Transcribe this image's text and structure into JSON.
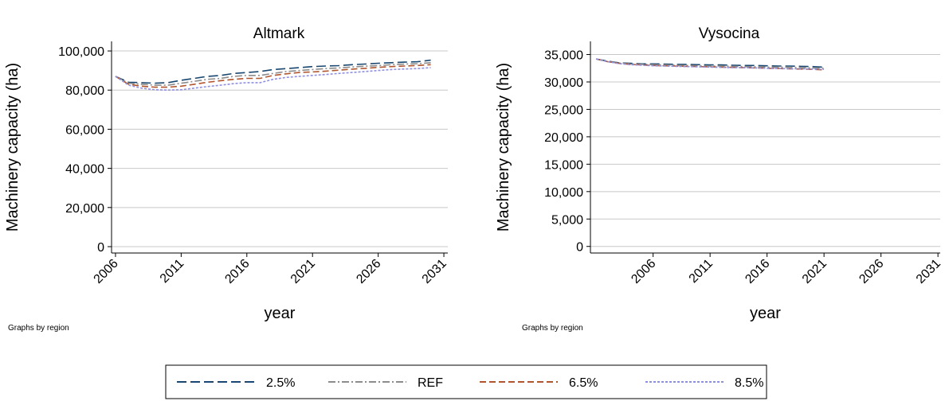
{
  "chart_data": [
    {
      "type": "line",
      "title": "Altmark",
      "x_label": "year",
      "y_label": "Machinery capacity (ha)",
      "note": "Graphs by region",
      "x": [
        2006,
        2007,
        2008,
        2009,
        2010,
        2011,
        2012,
        2013,
        2014,
        2015,
        2016,
        2017,
        2018,
        2019,
        2020,
        2021,
        2022,
        2023,
        2024,
        2025,
        2026,
        2027,
        2028,
        2029,
        2030
      ],
      "series": [
        {
          "values": [
            87000,
            84000,
            83800,
            83500,
            83800,
            85000,
            86000,
            87000,
            87500,
            88500,
            89000,
            89500,
            90500,
            91000,
            91500,
            92000,
            92300,
            92500,
            93000,
            93300,
            93700,
            94000,
            94300,
            94500,
            95300
          ]
        },
        {
          "values": [
            87000,
            83500,
            83000,
            82500,
            82500,
            83500,
            84500,
            85500,
            86000,
            87000,
            87500,
            87500,
            88500,
            89500,
            90000,
            90500,
            91000,
            91300,
            91800,
            92200,
            92500,
            93000,
            93300,
            93500,
            94000
          ]
        },
        {
          "values": [
            87000,
            83000,
            82000,
            81500,
            81500,
            82000,
            83000,
            84000,
            84800,
            85500,
            86000,
            86000,
            87500,
            88300,
            89000,
            89300,
            89700,
            90200,
            90700,
            91100,
            91600,
            92000,
            92300,
            92600,
            93000
          ]
        },
        {
          "values": [
            87000,
            82500,
            81000,
            80200,
            80000,
            80200,
            81000,
            81800,
            82500,
            83300,
            83800,
            83800,
            85500,
            86500,
            87000,
            87500,
            88000,
            88500,
            89000,
            89500,
            90000,
            90500,
            90800,
            91000,
            91500
          ]
        }
      ],
      "xlim": [
        2005.7,
        2031.3
      ],
      "xticks": [
        2006,
        2011,
        2016,
        2021,
        2026,
        2031
      ],
      "ylim": [
        -3250,
        104900
      ],
      "yticks": [
        0,
        {
          "value": 20000,
          "label": "20,000"
        },
        {
          "value": 40000,
          "label": "40,000"
        },
        {
          "value": 60000,
          "label": "60,000"
        },
        {
          "value": 80000,
          "label": "80,000"
        },
        {
          "value": 100000,
          "label": "100,000"
        }
      ],
      "grid": true
    },
    {
      "type": "line",
      "title": "Vysocina",
      "x_label": "year",
      "y_label": "Machinery capacity (ha)",
      "note": "Graphs by region",
      "x": [
        2001,
        2002,
        2003,
        2004,
        2005,
        2006,
        2007,
        2008,
        2009,
        2010,
        2011,
        2012,
        2013,
        2014,
        2015,
        2016,
        2017,
        2018,
        2019,
        2020,
        2021
      ],
      "series": [
        {
          "values": [
            34200,
            33800,
            33500,
            33400,
            33300,
            33300,
            33250,
            33200,
            33200,
            33150,
            33100,
            33100,
            33050,
            33000,
            33000,
            32950,
            32900,
            32900,
            32850,
            32800,
            32700
          ]
        },
        {
          "values": [
            34200,
            33750,
            33450,
            33300,
            33200,
            33150,
            33100,
            33050,
            33000,
            32950,
            32900,
            32900,
            32850,
            32800,
            32750,
            32700,
            32700,
            32650,
            32600,
            32550,
            32500
          ]
        },
        {
          "values": [
            34200,
            33700,
            33400,
            33200,
            33100,
            33000,
            32950,
            32900,
            32850,
            32800,
            32750,
            32700,
            32650,
            32600,
            32550,
            32500,
            32450,
            32400,
            32350,
            32300,
            32200
          ]
        },
        {
          "values": [
            34200,
            33700,
            33350,
            33150,
            33050,
            32950,
            32900,
            32850,
            32800,
            32750,
            32700,
            32650,
            32600,
            32600,
            32550,
            32500,
            32450,
            32400,
            32400,
            32350,
            32300
          ]
        }
      ],
      "xlim": [
        2000.5,
        2031.2
      ],
      "xticks": [
        2006,
        2011,
        2016,
        2021,
        2026,
        2031
      ],
      "ylim": [
        -1200,
        37400
      ],
      "yticks": [
        0,
        {
          "value": 5000,
          "label": "5,000"
        },
        {
          "value": 10000,
          "label": "10,000"
        },
        {
          "value": 15000,
          "label": "15,000"
        },
        {
          "value": 20000,
          "label": "20,000"
        },
        {
          "value": 25000,
          "label": "25,000"
        },
        {
          "value": 30000,
          "label": "30,000"
        },
        {
          "value": 35000,
          "label": "35,000"
        }
      ],
      "grid": true
    }
  ],
  "legend": {
    "series": [
      {
        "name": "2.5%",
        "color": "#1a476f",
        "dash": "12,5"
      },
      {
        "name": "REF",
        "color": "#8c8c8c",
        "dash": "9,3,2,3"
      },
      {
        "name": "6.5%",
        "color": "#b0552e",
        "dash": "8,4"
      },
      {
        "name": "8.5%",
        "color": "#8f8fe0",
        "dash": "3,2"
      }
    ]
  }
}
